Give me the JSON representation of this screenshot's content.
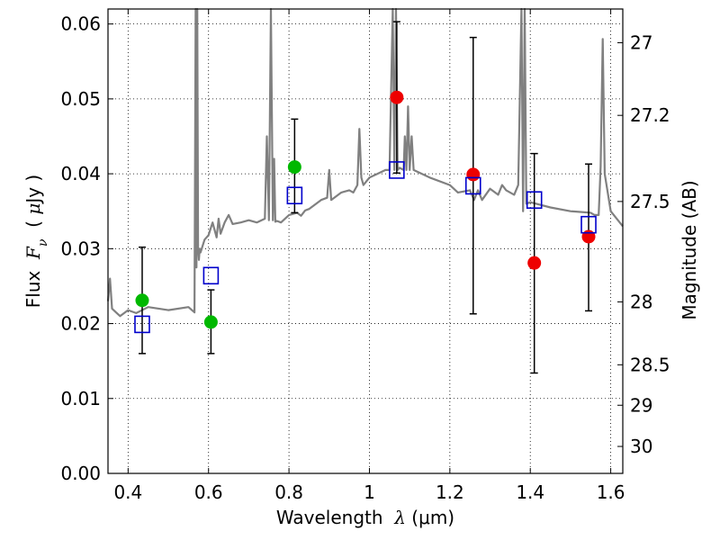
{
  "chart_data": {
    "type": "scatter",
    "xlabel": "Wavelength  λ (μm)",
    "xlabel_parts": {
      "prefix": "Wavelength  ",
      "symbol": "λ",
      "suffix": " (μm)"
    },
    "ylabel": "Flux  Fν  ( μJy )",
    "ylabel_parts": {
      "prefix": "Flux  ",
      "symbol": "F",
      "subscript": "ν",
      "mid": "  ( ",
      "mu": "μ",
      "suffix": "Jy )"
    },
    "y2label": "Magnitude (AB)",
    "xlim": [
      0.35,
      1.63
    ],
    "ylim": [
      0.0,
      0.062
    ],
    "grid": true,
    "xticks": [
      0.4,
      0.6,
      0.8,
      1.0,
      1.2,
      1.4,
      1.6
    ],
    "xtick_labels": [
      "0.4",
      "0.6",
      "0.8",
      "1",
      "1.2",
      "1.4",
      "1.6"
    ],
    "yticks": [
      0.0,
      0.01,
      0.02,
      0.03,
      0.04,
      0.05,
      0.06
    ],
    "ytick_labels": [
      "0.00",
      "0.01",
      "0.02",
      "0.03",
      "0.04",
      "0.05",
      "0.06"
    ],
    "y2ticks": [
      {
        "label": "27",
        "flux": 0.0575
      },
      {
        "label": "27.2",
        "flux": 0.0478
      },
      {
        "label": "27.5",
        "flux": 0.0363
      },
      {
        "label": "28",
        "flux": 0.0229
      },
      {
        "label": "28.5",
        "flux": 0.0145
      },
      {
        "label": "29",
        "flux": 0.0091
      },
      {
        "label": "30",
        "flux": 0.0036
      }
    ],
    "series": [
      {
        "name": "observed (green)",
        "color": "#00b800",
        "marker": "circle",
        "points": [
          {
            "x": 0.435,
            "y": 0.0231,
            "err_lo": 0.016,
            "err_hi": 0.0302
          },
          {
            "x": 0.606,
            "y": 0.0202,
            "err_lo": 0.016,
            "err_hi": 0.0245
          },
          {
            "x": 0.814,
            "y": 0.0409,
            "err_lo": 0.0348,
            "err_hi": 0.0473
          }
        ]
      },
      {
        "name": "observed (red)",
        "color": "#ee0000",
        "marker": "circle",
        "points": [
          {
            "x": 1.068,
            "y": 0.0502,
            "err_lo": 0.0401,
            "err_hi": 0.0603
          },
          {
            "x": 1.258,
            "y": 0.0399,
            "err_lo": 0.0213,
            "err_hi": 0.0582
          },
          {
            "x": 1.41,
            "y": 0.0281,
            "err_lo": 0.0134,
            "err_hi": 0.0427
          },
          {
            "x": 1.545,
            "y": 0.0316,
            "err_lo": 0.0217,
            "err_hi": 0.0413
          }
        ]
      },
      {
        "name": "model (blue squares)",
        "color": "#0000cc",
        "marker": "square",
        "points": [
          {
            "x": 0.435,
            "y": 0.0199
          },
          {
            "x": 0.606,
            "y": 0.0264
          },
          {
            "x": 0.814,
            "y": 0.0371
          },
          {
            "x": 1.068,
            "y": 0.0405
          },
          {
            "x": 1.258,
            "y": 0.0384
          },
          {
            "x": 1.41,
            "y": 0.0365
          },
          {
            "x": 1.545,
            "y": 0.0332
          }
        ]
      },
      {
        "name": "model spectrum",
        "color": "#808080",
        "type": "line",
        "x": [
          0.35,
          0.355,
          0.36,
          0.37,
          0.38,
          0.4,
          0.42,
          0.45,
          0.5,
          0.55,
          0.565,
          0.568,
          0.57,
          0.572,
          0.574,
          0.576,
          0.578,
          0.58,
          0.59,
          0.6,
          0.61,
          0.62,
          0.625,
          0.63,
          0.64,
          0.65,
          0.66,
          0.68,
          0.7,
          0.72,
          0.74,
          0.745,
          0.75,
          0.755,
          0.76,
          0.763,
          0.766,
          0.77,
          0.78,
          0.8,
          0.82,
          0.83,
          0.84,
          0.85,
          0.88,
          0.895,
          0.9,
          0.905,
          0.93,
          0.95,
          0.96,
          0.97,
          0.975,
          0.98,
          0.985,
          1.0,
          1.02,
          1.04,
          1.05,
          1.058,
          1.062,
          1.066,
          1.07,
          1.075,
          1.085,
          1.088,
          1.092,
          1.096,
          1.1,
          1.105,
          1.11,
          1.15,
          1.2,
          1.22,
          1.25,
          1.26,
          1.27,
          1.28,
          1.3,
          1.32,
          1.33,
          1.34,
          1.36,
          1.37,
          1.378,
          1.382,
          1.386,
          1.39,
          1.4,
          1.45,
          1.5,
          1.55,
          1.56,
          1.57,
          1.575,
          1.58,
          1.585,
          1.6,
          1.63
        ],
        "y": [
          0.023,
          0.026,
          0.022,
          0.0215,
          0.021,
          0.0218,
          0.0214,
          0.0222,
          0.0218,
          0.0222,
          0.0215,
          0.062,
          0.0275,
          0.062,
          0.03,
          0.0285,
          0.03,
          0.0295,
          0.0312,
          0.0318,
          0.0335,
          0.0315,
          0.034,
          0.032,
          0.0335,
          0.0345,
          0.0333,
          0.0335,
          0.0338,
          0.0335,
          0.034,
          0.045,
          0.0338,
          0.062,
          0.0338,
          0.042,
          0.0336,
          0.0337,
          0.0335,
          0.0345,
          0.0348,
          0.0344,
          0.0351,
          0.0353,
          0.0365,
          0.0368,
          0.0405,
          0.0365,
          0.0375,
          0.0378,
          0.0375,
          0.0385,
          0.046,
          0.0395,
          0.0385,
          0.0395,
          0.04,
          0.0405,
          0.0405,
          0.062,
          0.0405,
          0.062,
          0.0405,
          0.0408,
          0.0405,
          0.045,
          0.0405,
          0.049,
          0.0405,
          0.045,
          0.0405,
          0.0395,
          0.0385,
          0.0375,
          0.0378,
          0.0365,
          0.0378,
          0.0365,
          0.038,
          0.0372,
          0.0385,
          0.0378,
          0.0372,
          0.0385,
          0.062,
          0.035,
          0.062,
          0.036,
          0.0362,
          0.0355,
          0.035,
          0.0348,
          0.0345,
          0.0345,
          0.041,
          0.058,
          0.04,
          0.035,
          0.033
        ]
      }
    ]
  }
}
